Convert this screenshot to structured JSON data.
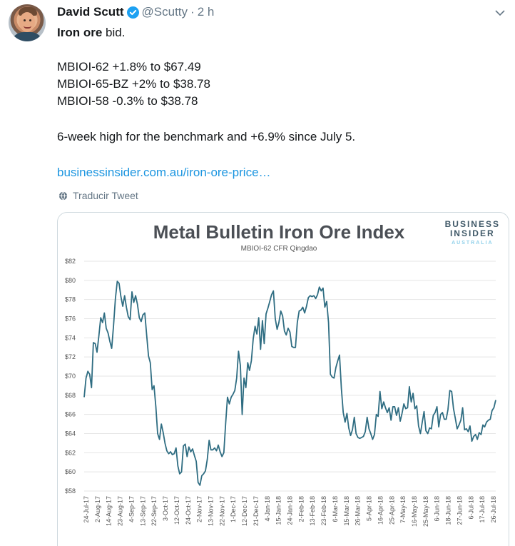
{
  "tweet": {
    "author_name": "David Scutt",
    "handle": "@Scutty",
    "separator": "·",
    "time": "2 h",
    "lead_bold": "Iron ore",
    "lead_rest": " bid.",
    "lines": [
      "MBIOI-62 +1.8% to $67.49",
      "MBIOI-65-BZ +2% to $38.78",
      "MBIOI-58 -0.3% to $38.78"
    ],
    "summary": "6-week high for the benchmark and +6.9% since July 5.",
    "link_text": "businessinsider.com.au/iron-ore-price…",
    "translate_text": "Traducir Tweet",
    "verified_color": "#1da1f2",
    "link_color": "#1b95e0"
  },
  "brand": {
    "line1": "BUSINESS",
    "line2": "INSIDER",
    "line3": "AUSTRALIA"
  },
  "chart_data": {
    "type": "line",
    "title": "Metal Bulletin Iron Ore Index",
    "subtitle": "MBIOI-62 CFR Qingdao",
    "xlabel": "",
    "ylabel": "",
    "ylim": [
      58,
      82
    ],
    "ytick_values": [
      58,
      60,
      62,
      64,
      66,
      68,
      70,
      72,
      74,
      76,
      78,
      80,
      82
    ],
    "ytick_labels": [
      "$58",
      "$60",
      "$62",
      "$64",
      "$66",
      "$68",
      "$70",
      "$72",
      "$74",
      "$76",
      "$78",
      "$80",
      "$82"
    ],
    "x_tick_labels": [
      "24-Jul-17",
      "2-Aug-17",
      "14-Aug-17",
      "23-Aug-17",
      "4-Sep-17",
      "13-Sep-17",
      "22-Sep-17",
      "3-Oct-17",
      "12-Oct-17",
      "24-Oct-17",
      "2-Nov-17",
      "13-Nov-17",
      "22-Nov-17",
      "1-Dec-17",
      "12-Dec-17",
      "21-Dec-17",
      "4-Jan-18",
      "15-Jan-18",
      "24-Jan-18",
      "2-Feb-18",
      "13-Feb-18",
      "23-Feb-18",
      "6-Mar-18",
      "15-Mar-18",
      "26-Mar-18",
      "5-Apr-18",
      "16-Apr-18",
      "25-Apr-18",
      "7-May-18",
      "16-May-18",
      "25-May-18",
      "6-Jun-18",
      "18-Jun-18",
      "27-Jun-18",
      "6-Jul-18",
      "17-Jul-18",
      "26-Jul-18"
    ],
    "grid": true,
    "line_color": "#2f6d82",
    "series": [
      {
        "values": [
          67.8,
          69.8,
          70.5,
          70.2,
          68.8,
          73.5,
          73.4,
          72.5,
          74.2,
          76.1,
          75.6,
          76.6,
          75.0,
          74.5,
          73.6,
          72.9,
          75.3,
          78.1,
          79.9,
          79.7,
          78.3,
          77.3,
          78.4,
          77.2,
          76.2,
          75.9,
          78.8,
          77.7,
          78.4,
          77.5,
          76.1,
          75.7,
          76.4,
          76.6,
          74.3,
          72.1,
          71.4,
          68.6,
          69.0,
          66.8,
          64.0,
          63.4,
          65.0,
          64.1,
          63.0,
          62.2,
          61.9,
          62.1,
          61.8,
          61.9,
          62.5,
          60.6,
          59.8,
          60.0,
          62.7,
          62.9,
          61.6,
          62.6,
          62.1,
          62.4,
          61.7,
          61.1,
          58.9,
          58.6,
          59.6,
          59.8,
          60.1,
          61.3,
          63.3,
          62.3,
          62.3,
          62.5,
          62.2,
          62.8,
          62.1,
          61.6,
          62.0,
          65.0,
          67.8,
          67.1,
          67.8,
          68.1,
          68.5,
          69.8,
          72.6,
          71.1,
          66.0,
          69.8,
          68.8,
          71.4,
          70.6,
          71.6,
          73.9,
          75.2,
          74.4,
          76.1,
          72.8,
          75.8,
          73.4,
          76.5,
          77.1,
          77.8,
          78.5,
          78.9,
          76.0,
          74.9,
          75.6,
          76.8,
          76.3,
          74.7,
          74.3,
          75.0,
          74.6,
          73.1,
          73.0,
          73.0,
          75.6,
          76.8,
          76.9,
          77.2,
          76.6,
          77.3,
          78.2,
          78.4,
          78.3,
          78.4,
          78.1,
          78.5,
          79.3,
          78.9,
          79.2,
          77.2,
          77.8,
          75.6,
          70.2,
          69.9,
          69.8,
          70.9,
          71.6,
          72.2,
          68.7,
          66.2,
          65.2,
          66.1,
          64.6,
          63.8,
          64.4,
          65.7,
          64.0,
          63.6,
          63.5,
          63.6,
          63.7,
          64.2,
          65.7,
          64.5,
          64.0,
          63.4,
          63.9,
          66.0,
          65.8,
          68.4,
          66.6,
          67.3,
          66.7,
          66.2,
          66.7,
          65.4,
          66.8,
          66.8,
          65.9,
          66.7,
          65.3,
          66.1,
          67.1,
          66.6,
          66.7,
          68.9,
          67.3,
          68.2,
          66.6,
          66.9,
          64.8,
          64.0,
          65.2,
          66.3,
          64.3,
          64.0,
          64.6,
          64.5,
          65.9,
          66.2,
          66.8,
          64.7,
          66.0,
          66.2,
          65.5,
          65.5,
          66.5,
          68.5,
          68.4,
          66.6,
          65.6,
          64.5,
          64.9,
          65.4,
          66.7,
          64.4,
          64.5,
          64.2,
          64.8,
          63.2,
          63.7,
          63.9,
          63.4,
          64.1,
          63.9,
          64.9,
          64.7,
          65.2,
          65.4,
          65.5,
          66.4,
          66.7,
          67.5
        ]
      }
    ]
  }
}
